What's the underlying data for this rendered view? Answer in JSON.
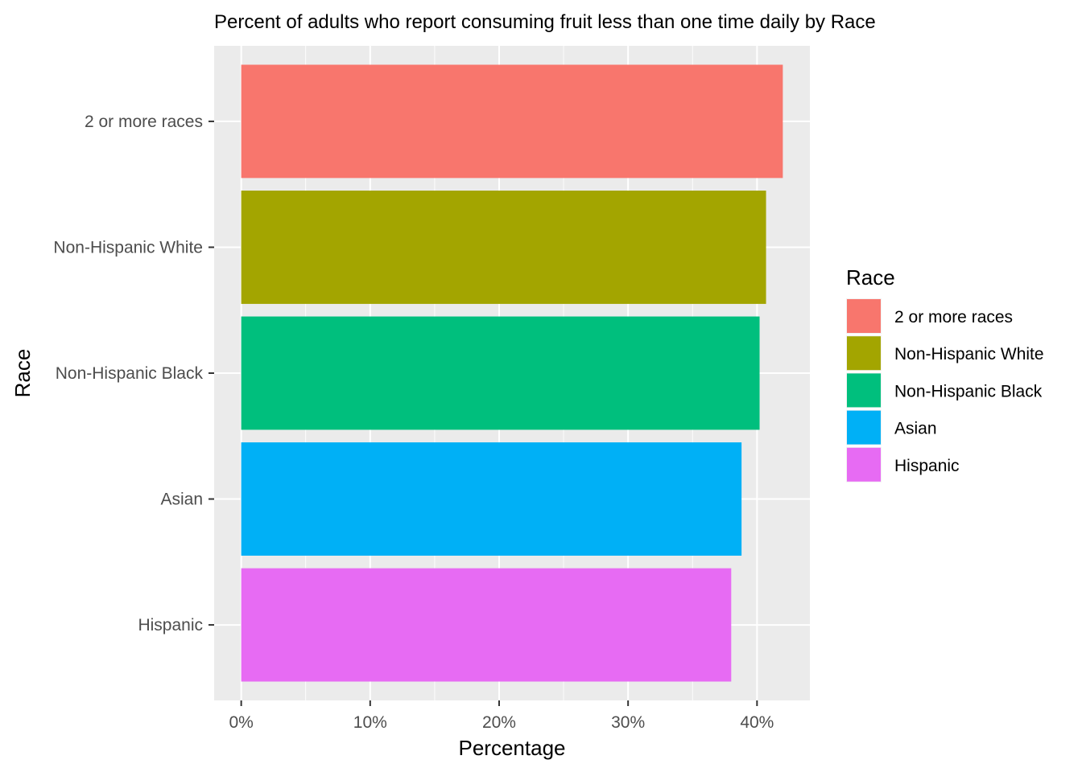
{
  "chart_data": {
    "type": "bar",
    "orientation": "horizontal",
    "title": "Percent of adults who report consuming fruit less than one time daily by Race",
    "xlabel": "Percentage",
    "ylabel": "Race",
    "categories": [
      "2 or more races",
      "Non-Hispanic White",
      "Non-Hispanic Black",
      "Asian",
      "Hispanic"
    ],
    "values": [
      42.0,
      40.7,
      40.2,
      38.8,
      38.0
    ],
    "colors": [
      "#F8766D",
      "#A3A500",
      "#00BF7D",
      "#00B0F6",
      "#E76BF3"
    ],
    "xlim": [
      -2.1,
      44.1
    ],
    "xticks": [
      0,
      10,
      20,
      30,
      40
    ],
    "xtick_labels": [
      "0%",
      "10%",
      "20%",
      "30%",
      "40%"
    ],
    "grid": true,
    "panel_background": "#EBEBEB",
    "legend": {
      "title": "Race",
      "position": "right",
      "entries": [
        "2 or more races",
        "Non-Hispanic White",
        "Non-Hispanic Black",
        "Asian",
        "Hispanic"
      ]
    }
  }
}
